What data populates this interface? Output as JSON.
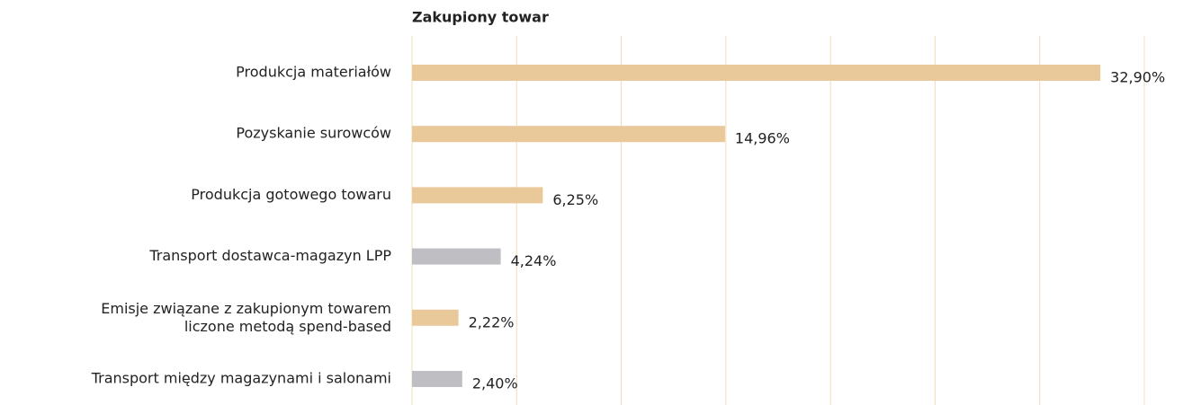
{
  "chart_data": {
    "type": "bar",
    "orientation": "horizontal",
    "title": "Zakupiony towar",
    "categories": [
      "Produkcja materiałów",
      "Pozyskanie surowców",
      "Produkcja gotowego towaru",
      "Transport dostawca-magazyn LPP",
      "Emisje związane z zakupionym towarem\nliczone metodą spend-based",
      "Transport między magazynami i salonami"
    ],
    "values": [
      32.9,
      14.96,
      6.25,
      4.24,
      2.22,
      2.4
    ],
    "value_labels": [
      "32,90%",
      "14,96%",
      "6,25%",
      "4,24%",
      "2,22%",
      "2,40%"
    ],
    "colors": [
      "#e9c99a",
      "#e9c99a",
      "#e9c99a",
      "#bfbfc3",
      "#e9c99a",
      "#bfbfc3"
    ],
    "xlim": [
      0,
      35
    ],
    "xticks": [
      0,
      5,
      10,
      15,
      20,
      25,
      30,
      35
    ],
    "grid": true,
    "grid_color": "#f0dcb8"
  }
}
